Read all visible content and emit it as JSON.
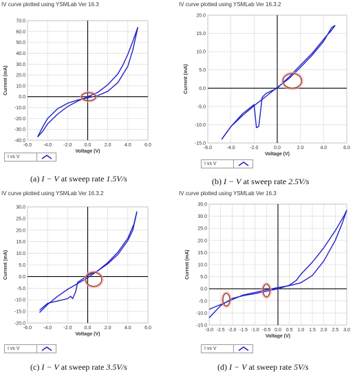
{
  "accent": "#2020c8",
  "circle_color": "#a0522d",
  "chart_data": [
    {
      "type": "line",
      "title": "IV curve plotted using YSMLab Ver 16.3",
      "xlabel": "Voltage (V)",
      "ylabel": "Current (mA)",
      "xlim": [
        -6,
        6
      ],
      "ylim": [
        -40,
        70
      ],
      "xticks": [
        -6,
        -4,
        -2,
        0,
        2,
        4,
        6
      ],
      "yticks": [
        -40,
        -30,
        -20,
        -10,
        0,
        10,
        20,
        30,
        40,
        50,
        60,
        70
      ],
      "xtick_labels": [
        "-6.0",
        "-4.0",
        "-2.0",
        "0.0",
        "2.0",
        "4.0",
        "6.0"
      ],
      "ytick_labels": [
        "-40.0",
        "-30.0",
        "-20.0",
        "-10.0",
        "0.0",
        "10.0",
        "20.0",
        "30.0",
        "40.0",
        "50.0",
        "60.0",
        "70.0"
      ],
      "grid": true,
      "legend": "I vs V",
      "caption_prefix": "(a)",
      "caption_math": "I − V",
      "caption_text": "at sweep rate",
      "caption_rate": "1.5V/s",
      "series": [
        {
          "x": [
            -5.0,
            -4.5,
            -4.0,
            -3.0,
            -2.0,
            -1.0,
            0.0,
            1.0,
            2.0,
            3.0,
            3.5,
            4.0,
            4.5,
            5.0
          ],
          "y": [
            -37,
            -32,
            -25,
            -16,
            -9,
            -4,
            0,
            4,
            11,
            21,
            29,
            39,
            51,
            64
          ]
        },
        {
          "x": [
            5.0,
            4.5,
            4.0,
            3.0,
            2.0,
            1.0,
            0.0,
            -1.0,
            -2.0,
            -3.0,
            -4.0,
            -4.5,
            -5.0
          ],
          "y": [
            64,
            43,
            28,
            13,
            5,
            1,
            -1,
            -3,
            -6,
            -11,
            -20,
            -28,
            -37
          ]
        }
      ],
      "circles": [
        {
          "x": 0.1,
          "y": 0.0,
          "rx": 0.7,
          "ry": 3.6
        }
      ]
    },
    {
      "type": "line",
      "title": "IV curve plotted using YSMLab Ver 16.3.2",
      "xlabel": "Voltage (V)",
      "ylabel": "Current (mA)",
      "xlim": [
        -6,
        6
      ],
      "ylim": [
        -15,
        20
      ],
      "xticks": [
        -6,
        -4,
        -2,
        0,
        2,
        4,
        6
      ],
      "yticks": [
        -15,
        -10,
        -5,
        0,
        5,
        10,
        15,
        20
      ],
      "xtick_labels": [
        "-6.0",
        "-4.0",
        "-2.0",
        "0.0",
        "2.0",
        "4.0",
        "6.0"
      ],
      "ytick_labels": [
        "-15.0",
        "-10.0",
        "-5.0",
        "0.0",
        "5.0",
        "10.0",
        "15.0",
        "20.0"
      ],
      "grid": true,
      "legend": "I vs V",
      "caption_prefix": "(b)",
      "caption_math": "I − V",
      "caption_text": "at sweep rate",
      "caption_rate": "2.5V/s",
      "series": [
        {
          "x": [
            -4.8,
            -4.0,
            -3.0,
            -2.0,
            -1.0,
            0.0,
            1.0,
            2.0,
            3.0,
            4.0,
            4.7,
            5.0
          ],
          "y": [
            -14,
            -10.5,
            -7.5,
            -4.8,
            -2.3,
            0.2,
            2.6,
            5.7,
            9.0,
            12.8,
            16.6,
            17.2
          ]
        },
        {
          "x": [
            5.0,
            4.6,
            4.3,
            3.0,
            2.0,
            1.0,
            0.0,
            -1.0,
            -1.3,
            -1.6,
            -1.8,
            -2.0,
            -3.0,
            -4.0,
            -4.8
          ],
          "y": [
            17.2,
            15.5,
            14.5,
            9.5,
            6.3,
            3.0,
            0.0,
            -1.5,
            -2.5,
            -10.5,
            -10.8,
            -4.5,
            -7.0,
            -10.5,
            -14
          ]
        }
      ],
      "circles": [
        {
          "x": 1.3,
          "y": 2.0,
          "rx": 0.8,
          "ry": 2.0
        }
      ]
    },
    {
      "type": "line",
      "title": "IV curve plotted using YSMLab Ver 16.3.2",
      "xlabel": "Voltage (V)",
      "ylabel": "Current (mA)",
      "xlim": [
        -6,
        6
      ],
      "ylim": [
        -20,
        30
      ],
      "xticks": [
        -6,
        -4,
        -2,
        0,
        2,
        4,
        6
      ],
      "yticks": [
        -20,
        -15,
        -10,
        -5,
        0,
        5,
        10,
        15,
        20,
        25,
        30
      ],
      "xtick_labels": [
        "-6.0",
        "-4.0",
        "-2.0",
        "0.0",
        "2.0",
        "4.0",
        "6.0"
      ],
      "ytick_labels": [
        "-20.0",
        "-15.0",
        "-10.0",
        "-5.0",
        "0.0",
        "5.0",
        "10.0",
        "15.0",
        "20.0",
        "25.0",
        "30.0"
      ],
      "grid": true,
      "legend": "I vs V",
      "caption_prefix": "(c)",
      "caption_math": "I − V",
      "caption_text": "at sweep rate",
      "caption_rate": "3.5V/s",
      "series": [
        {
          "x": [
            -4.8,
            -4.0,
            -3.0,
            -2.0,
            -1.0,
            0.0,
            1.0,
            2.0,
            3.0,
            4.0,
            4.6,
            4.9
          ],
          "y": [
            -15.5,
            -12,
            -8.5,
            -5.5,
            -3,
            -0.5,
            2.5,
            6.0,
            10.5,
            16.5,
            22.5,
            28
          ]
        },
        {
          "x": [
            4.9,
            4.5,
            4.0,
            3.0,
            2.0,
            1.0,
            0.0,
            -1.0,
            -1.2,
            -1.5,
            -1.7,
            -2.0,
            -3.0,
            -4.0,
            -4.8
          ],
          "y": [
            28,
            20,
            15.5,
            9.5,
            5.5,
            2.5,
            0.5,
            -2.5,
            -6.5,
            -9.5,
            -8.5,
            -9.5,
            -10.5,
            -11.5,
            -14.5
          ]
        }
      ],
      "circles": [
        {
          "x": 0.6,
          "y": -1.2,
          "rx": 0.8,
          "ry": 3.0
        }
      ]
    },
    {
      "type": "line",
      "title": "IV curve plotted using YSMLab Ver 16.3",
      "xlabel": "Voltage (V)",
      "ylabel": "Current (mA)",
      "xlim": [
        -3,
        3
      ],
      "ylim": [
        -15,
        35
      ],
      "xticks": [
        -3,
        -2.5,
        -2,
        -1.5,
        -1,
        -0.5,
        0,
        0.5,
        1,
        1.5,
        2,
        2.5,
        3
      ],
      "yticks": [
        -15,
        -10,
        -5,
        0,
        5,
        10,
        15,
        20,
        25,
        30,
        35
      ],
      "xtick_labels": [
        "-3.0",
        "-2.5",
        "-2.0",
        "-1.5",
        "-1.0",
        "-0.5",
        "0.0",
        "0.5",
        "1.0",
        "1.5",
        "2.0",
        "2.5",
        "3.0"
      ],
      "ytick_labels": [
        "-15.0",
        "-10.0",
        "-5.0",
        "0.0",
        "5.0",
        "10.0",
        "15.0",
        "20.0",
        "25.0",
        "30.0",
        "35.0"
      ],
      "grid": true,
      "legend": "I vs V",
      "caption_prefix": "(d)",
      "caption_math": "I − V",
      "caption_text": "at sweep rate",
      "caption_rate": "5V/s",
      "series": [
        {
          "x": [
            -3.0,
            -2.5,
            -2.0,
            -1.5,
            -1.0,
            -0.5,
            0.0,
            0.5,
            0.8,
            1.0,
            1.5,
            2.0,
            2.5,
            2.9,
            3.0
          ],
          "y": [
            -12,
            -7,
            -4,
            -2.8,
            -2,
            -1,
            0,
            1.5,
            3.5,
            6,
            11,
            17,
            24,
            30.5,
            32.5
          ]
        },
        {
          "x": [
            3.0,
            2.8,
            2.5,
            2.0,
            1.5,
            1.0,
            0.5,
            0.0,
            -0.5,
            -1.0,
            -1.5,
            -2.0,
            -2.5,
            -3.0
          ],
          "y": [
            32.5,
            27,
            20,
            11.5,
            5.5,
            2.5,
            1.3,
            0.5,
            -0.4,
            -1.5,
            -2.5,
            -4.5,
            -6.5,
            -8.5
          ]
        }
      ],
      "circles": [
        {
          "x": -2.25,
          "y": -4.5,
          "rx": 0.15,
          "ry": 2.6
        },
        {
          "x": -0.5,
          "y": -0.7,
          "rx": 0.15,
          "ry": 2.6
        }
      ]
    }
  ]
}
